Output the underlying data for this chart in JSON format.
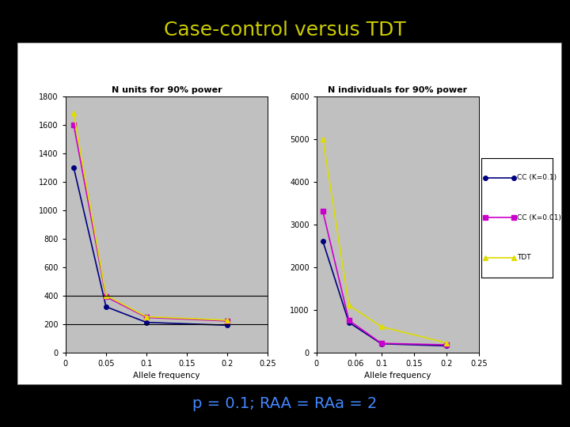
{
  "title": "Case-control versus TDT",
  "subtitle": "p = 0.1; RAA = RAa = 2",
  "background_color": "#000000",
  "plot_bg_color": "#c0c0c0",
  "outer_bg_color": "#ffffff",
  "title_color": "#cccc00",
  "subtitle_color": "#4488ff",
  "left_plot": {
    "title": "N units for 90% power",
    "xlabel": "Allele frequency",
    "xlim": [
      0,
      0.25
    ],
    "ylim": [
      0,
      1800
    ],
    "xticks": [
      0,
      0.05,
      0.1,
      0.15,
      0.2,
      0.25
    ],
    "xtick_labels": [
      "0",
      "0.05",
      "0.1",
      "0.15",
      "0.2",
      "0.25"
    ],
    "yticks": [
      0,
      200,
      400,
      600,
      800,
      1000,
      1200,
      1400,
      1600,
      1800
    ],
    "hlines": [
      200,
      400
    ],
    "series": {
      "cc_k01": {
        "x": [
          0.01,
          0.05,
          0.1,
          0.2
        ],
        "y": [
          1300,
          320,
          210,
          190
        ],
        "color": "#000080",
        "marker": "o",
        "label": "CC (K=0.1)"
      },
      "cc_k001": {
        "x": [
          0.01,
          0.05,
          0.1,
          0.2
        ],
        "y": [
          1600,
          390,
          245,
          220
        ],
        "color": "#cc00cc",
        "marker": "s",
        "label": "CC (K=0.01)"
      },
      "tdt": {
        "x": [
          0.01,
          0.05,
          0.1,
          0.2
        ],
        "y": [
          1680,
          400,
          250,
          225
        ],
        "color": "#dddd00",
        "marker": "^",
        "label": "TDT"
      }
    }
  },
  "right_plot": {
    "title": "N individuals for 90% power",
    "xlabel": "Allele frequency",
    "xlim": [
      0,
      0.25
    ],
    "ylim": [
      0,
      6000
    ],
    "xticks": [
      0,
      0.06,
      0.1,
      0.15,
      0.2,
      0.25
    ],
    "xtick_labels": [
      "0",
      "0.06",
      "0.1",
      "0.15",
      "0.2",
      "0.25"
    ],
    "yticks": [
      0,
      1000,
      2000,
      3000,
      4000,
      5000,
      6000
    ],
    "series": {
      "cc_k01": {
        "x": [
          0.01,
          0.05,
          0.1,
          0.2
        ],
        "y": [
          2600,
          700,
          200,
          150
        ],
        "color": "#000080",
        "marker": "o",
        "label": "CC (K=0.1)"
      },
      "cc_k001": {
        "x": [
          0.01,
          0.05,
          0.1,
          0.2
        ],
        "y": [
          3300,
          750,
          210,
          175
        ],
        "color": "#cc00cc",
        "marker": "s",
        "label": "CC (K=0.01)"
      },
      "tdt": {
        "x": [
          0.01,
          0.05,
          0.1,
          0.2
        ],
        "y": [
          5000,
          1100,
          600,
          220
        ],
        "color": "#dddd00",
        "marker": "^",
        "label": "TDT"
      }
    }
  },
  "legend": {
    "entries": [
      {
        "label": "CC (K=0.1)",
        "color": "#000080",
        "marker": "o"
      },
      {
        "label": "CC (K=0.01)",
        "color": "#cc00cc",
        "marker": "s"
      },
      {
        "label": "TDT",
        "color": "#dddd00",
        "marker": "^"
      }
    ]
  }
}
